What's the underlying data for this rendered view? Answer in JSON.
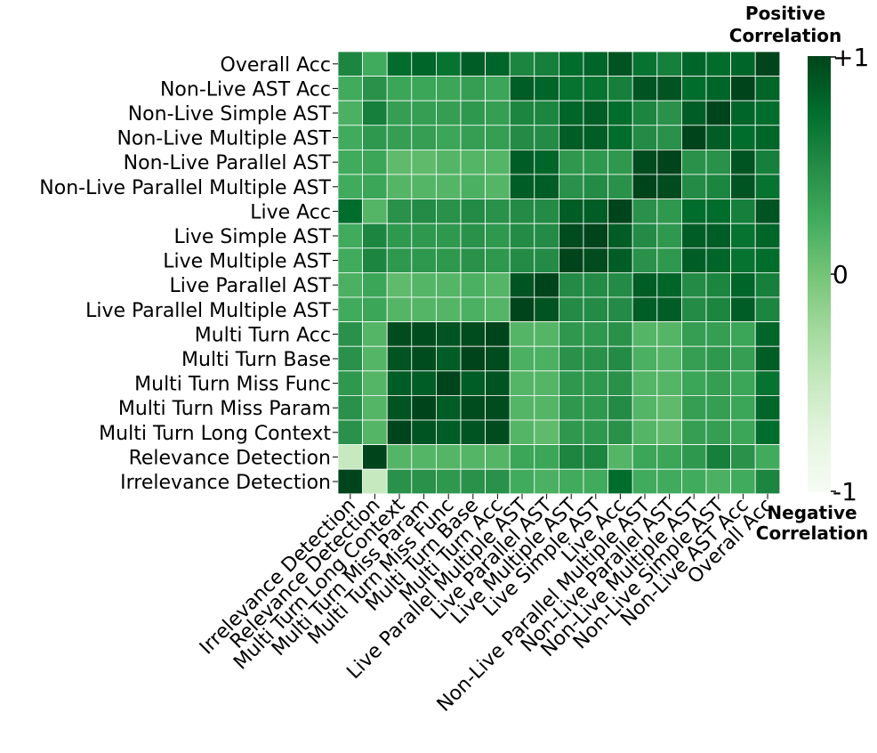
{
  "chart_data": {
    "type": "heatmap",
    "colormap": "Greens",
    "value_range": [
      -1,
      1
    ],
    "rows": [
      "Overall Acc",
      "Non-Live AST Acc",
      "Non-Live Simple AST",
      "Non-Live Multiple AST",
      "Non-Live Parallel AST",
      "Non-Live Parallel Multiple AST",
      "Live Acc",
      "Live Simple AST",
      "Live Multiple AST",
      "Live Parallel AST",
      "Live Parallel Multiple AST",
      "Multi Turn Acc",
      "Multi Turn Base",
      "Multi Turn Miss Func",
      "Multi Turn Miss Param",
      "Multi Turn Long Context",
      "Relevance Detection",
      "Irrelevance Detection"
    ],
    "columns": [
      "Irrelevance Detection",
      "Relevance Detection",
      "Multi Turn Long Context",
      "Multi Turn Miss Param",
      "Multi Turn Miss Func",
      "Multi Turn Base",
      "Multi Turn Acc",
      "Live Parallel Multiple AST",
      "Live Parallel AST",
      "Live Multiple AST",
      "Live Simple AST",
      "Live Acc",
      "Non-Live Parallel Multiple AST",
      "Non-Live Parallel AST",
      "Non-Live Multiple AST",
      "Non-Live Simple AST",
      "Non-Live AST Acc",
      "Overall Acc"
    ],
    "values": [
      [
        0.55,
        0.25,
        0.75,
        0.8,
        0.7,
        0.85,
        0.8,
        0.55,
        0.6,
        0.75,
        0.8,
        0.9,
        0.7,
        0.6,
        0.8,
        0.75,
        0.8,
        1.0
      ],
      [
        0.25,
        0.45,
        0.3,
        0.3,
        0.3,
        0.35,
        0.3,
        0.85,
        0.8,
        0.7,
        0.7,
        0.6,
        0.9,
        0.9,
        0.75,
        0.8,
        1.0,
        0.8
      ],
      [
        0.2,
        0.6,
        0.35,
        0.35,
        0.35,
        0.4,
        0.35,
        0.55,
        0.55,
        0.8,
        0.85,
        0.75,
        0.55,
        0.45,
        0.85,
        1.0,
        0.8,
        0.75
      ],
      [
        0.25,
        0.4,
        0.35,
        0.35,
        0.3,
        0.35,
        0.35,
        0.5,
        0.5,
        0.85,
        0.85,
        0.75,
        0.5,
        0.45,
        1.0,
        0.85,
        0.75,
        0.8
      ],
      [
        0.25,
        0.3,
        0.1,
        0.1,
        0.15,
        0.15,
        0.15,
        0.85,
        0.8,
        0.4,
        0.4,
        0.4,
        0.95,
        1.0,
        0.45,
        0.45,
        0.9,
        0.6
      ],
      [
        0.25,
        0.3,
        0.15,
        0.15,
        0.15,
        0.2,
        0.15,
        0.85,
        0.85,
        0.45,
        0.5,
        0.45,
        1.0,
        0.95,
        0.5,
        0.55,
        0.9,
        0.7
      ],
      [
        0.75,
        0.15,
        0.45,
        0.5,
        0.45,
        0.5,
        0.45,
        0.5,
        0.5,
        0.85,
        0.85,
        1.0,
        0.45,
        0.4,
        0.75,
        0.75,
        0.6,
        0.9
      ],
      [
        0.25,
        0.55,
        0.4,
        0.4,
        0.4,
        0.45,
        0.4,
        0.5,
        0.5,
        0.95,
        1.0,
        0.85,
        0.5,
        0.4,
        0.85,
        0.85,
        0.7,
        0.8
      ],
      [
        0.25,
        0.55,
        0.4,
        0.4,
        0.4,
        0.45,
        0.4,
        0.5,
        0.5,
        1.0,
        0.95,
        0.85,
        0.45,
        0.4,
        0.85,
        0.8,
        0.7,
        0.75
      ],
      [
        0.2,
        0.3,
        0.1,
        0.15,
        0.15,
        0.2,
        0.15,
        0.9,
        1.0,
        0.5,
        0.5,
        0.5,
        0.85,
        0.8,
        0.5,
        0.55,
        0.8,
        0.6
      ],
      [
        0.25,
        0.3,
        0.15,
        0.15,
        0.15,
        0.2,
        0.15,
        1.0,
        0.9,
        0.5,
        0.5,
        0.5,
        0.85,
        0.85,
        0.5,
        0.55,
        0.85,
        0.55
      ],
      [
        0.45,
        0.15,
        0.95,
        0.95,
        0.9,
        0.95,
        1.0,
        0.15,
        0.15,
        0.4,
        0.4,
        0.45,
        0.15,
        0.15,
        0.35,
        0.35,
        0.3,
        0.8
      ],
      [
        0.45,
        0.15,
        0.9,
        0.95,
        0.85,
        1.0,
        0.95,
        0.2,
        0.2,
        0.45,
        0.45,
        0.5,
        0.2,
        0.15,
        0.35,
        0.4,
        0.35,
        0.85
      ],
      [
        0.4,
        0.15,
        0.85,
        0.85,
        1.0,
        0.85,
        0.9,
        0.15,
        0.15,
        0.4,
        0.4,
        0.45,
        0.15,
        0.15,
        0.3,
        0.35,
        0.3,
        0.7
      ],
      [
        0.45,
        0.15,
        0.9,
        1.0,
        0.85,
        0.95,
        0.95,
        0.15,
        0.15,
        0.4,
        0.4,
        0.5,
        0.15,
        0.1,
        0.35,
        0.35,
        0.3,
        0.8
      ],
      [
        0.45,
        0.15,
        1.0,
        0.9,
        0.85,
        0.9,
        0.95,
        0.15,
        0.1,
        0.4,
        0.4,
        0.45,
        0.15,
        0.1,
        0.35,
        0.35,
        0.3,
        0.75
      ],
      [
        -0.5,
        1.0,
        0.15,
        0.15,
        0.15,
        0.15,
        0.15,
        0.3,
        0.3,
        0.55,
        0.55,
        0.15,
        0.3,
        0.3,
        0.4,
        0.6,
        0.45,
        0.25
      ],
      [
        1.0,
        -0.5,
        0.45,
        0.45,
        0.4,
        0.45,
        0.45,
        0.25,
        0.2,
        0.25,
        0.25,
        0.75,
        0.25,
        0.25,
        0.25,
        0.2,
        0.25,
        0.55
      ]
    ],
    "colorbar": {
      "ticks": [
        "+1",
        "0",
        "-1"
      ],
      "top_caption": [
        "Positive",
        "Correlation"
      ],
      "bottom_caption": [
        "Negative",
        "Correlation"
      ]
    }
  }
}
